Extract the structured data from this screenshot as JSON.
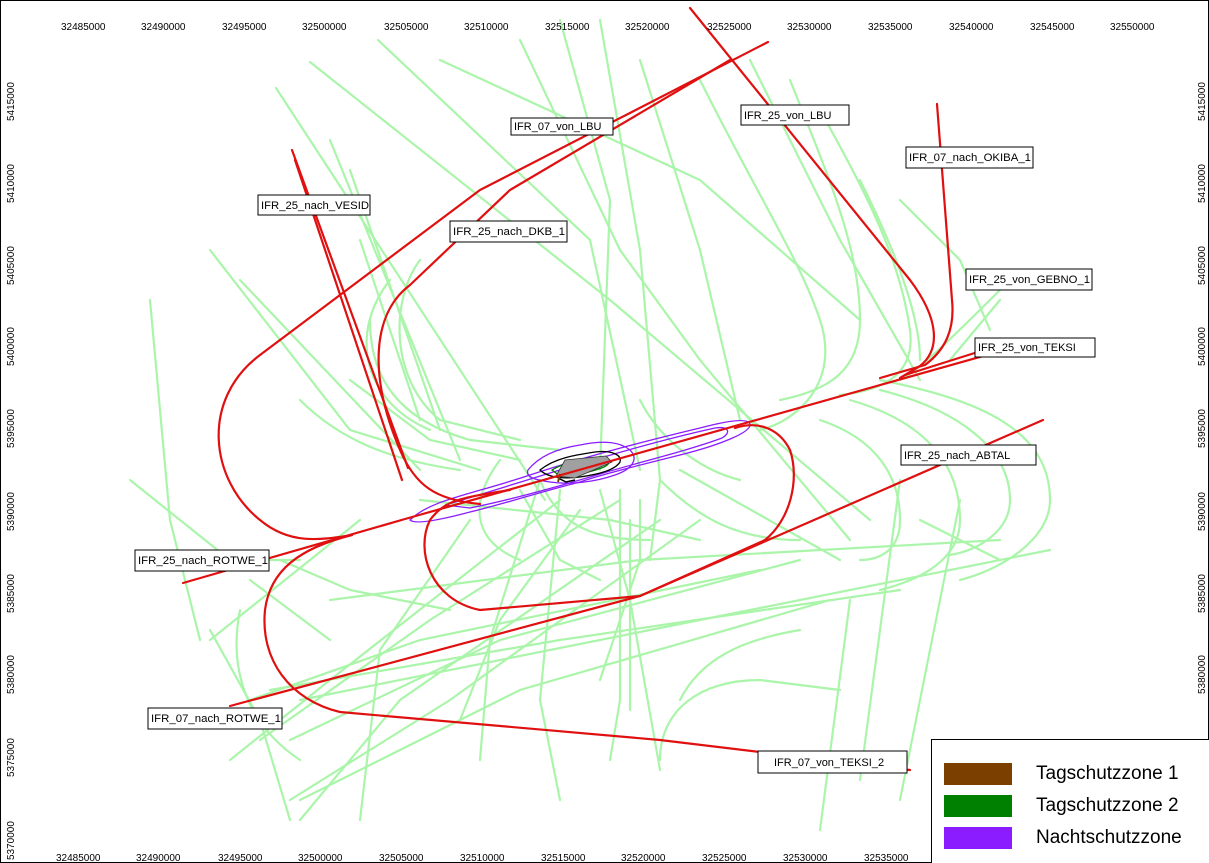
{
  "map": {
    "colors": {
      "tracks": "#aaf5aa",
      "routes": "#e01010",
      "tagschutzzone_1": "#7b3f00",
      "tagschutzzone_2": "#008000",
      "nachtschutzzone": "#8a1cff"
    },
    "x_ticks": [
      "32485000",
      "32490000",
      "32495000",
      "32500000",
      "32505000",
      "32510000",
      "32515000",
      "32520000",
      "32525000",
      "32530000",
      "32535000",
      "32540000",
      "32545000",
      "32550000"
    ],
    "y_ticks": [
      "5415000",
      "5410000",
      "5405000",
      "5400000",
      "5395000",
      "5390000",
      "5385000",
      "5380000",
      "5375000",
      "5370000"
    ],
    "route_labels": [
      {
        "text": "IFR_07_von_LBU"
      },
      {
        "text": "IFR_25_von_LBU"
      },
      {
        "text": "IFR_07_nach_OKIBA_1"
      },
      {
        "text": "IFR_25_nach_VESID"
      },
      {
        "text": "IFR_25_nach_DKB_1"
      },
      {
        "text": "IFR_25_von_GEBNO_1"
      },
      {
        "text": "IFR_25_von_TEKSI"
      },
      {
        "text": "IFR_25_nach_ABTAL"
      },
      {
        "text": "IFR_25_nach_ROTWE_1"
      },
      {
        "text": "IFR_07_nach_ROTWE_1"
      },
      {
        "text": "IFR_07_von_TEKSI_2"
      }
    ]
  },
  "legend": {
    "items": [
      {
        "label": "Tagschutzzone 1",
        "color": "#7b3f00"
      },
      {
        "label": "Tagschutzzone 2",
        "color": "#008000"
      },
      {
        "label": "Nachtschutzzone",
        "color": "#8a1cff"
      }
    ]
  }
}
